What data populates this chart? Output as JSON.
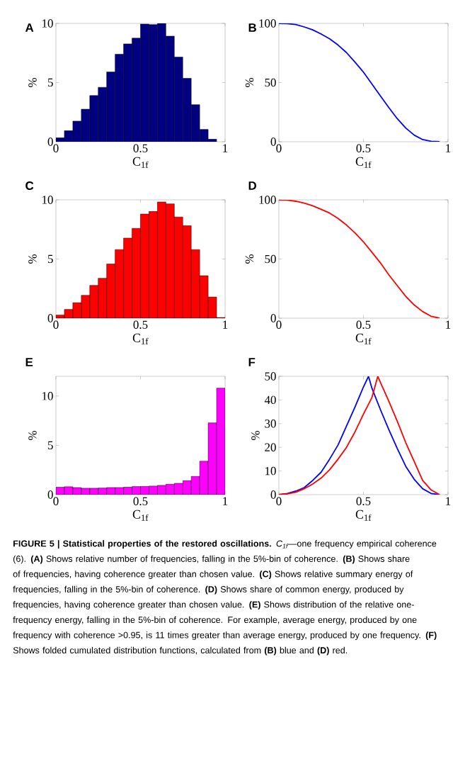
{
  "chart_data": [
    {
      "type": "histogram",
      "title": "A",
      "xlabel": "C$_{1f}$",
      "ylabel": "%",
      "color": "#000080",
      "bins": [
        0,
        0.05,
        0.1,
        0.15,
        0.2,
        0.25,
        0.3,
        0.35,
        0.4,
        0.45,
        0.5,
        0.55,
        0.6,
        0.65,
        0.7,
        0.75,
        0.8,
        0.85,
        0.9,
        0.95,
        1
      ],
      "values": [
        0.34,
        0.94,
        1.74,
        2.75,
        3.9,
        4.6,
        5.9,
        7.4,
        8.27,
        8.75,
        9.94,
        9.9,
        10.0,
        8.92,
        7.15,
        5.36,
        3.13,
        1.04,
        0.22,
        0
      ],
      "xlim": [
        0,
        1
      ],
      "xticks": [
        0,
        0.5,
        1
      ],
      "ylim": [
        0,
        10
      ],
      "yticks": [
        0,
        5,
        10
      ]
    },
    {
      "type": "line",
      "title": "B",
      "xlabel": "C$_{1f}$",
      "ylabel": "%",
      "color": "#0000ff",
      "x": [
        0,
        0.05,
        0.1,
        0.15,
        0.2,
        0.25,
        0.3,
        0.35,
        0.4,
        0.45,
        0.5,
        0.55,
        0.6,
        0.65,
        0.7,
        0.75,
        0.8,
        0.85,
        0.9,
        0.95
      ],
      "values": [
        100,
        99.8,
        99,
        97,
        94.5,
        91,
        87,
        81.7,
        75.3,
        67.3,
        58.8,
        48.8,
        38.8,
        28.9,
        19.5,
        11.6,
        5.6,
        1.8,
        0.4,
        0
      ],
      "xlim": [
        0,
        1
      ],
      "xticks": [
        0,
        0.5,
        1
      ],
      "ylim": [
        0,
        100
      ],
      "yticks": [
        0,
        50,
        100
      ]
    },
    {
      "type": "histogram",
      "title": "C",
      "xlabel": "C$_{1f}$",
      "ylabel": "%",
      "color": "#ff0000",
      "bins": [
        0,
        0.05,
        0.1,
        0.15,
        0.2,
        0.25,
        0.3,
        0.35,
        0.4,
        0.45,
        0.5,
        0.55,
        0.6,
        0.65,
        0.7,
        0.75,
        0.8,
        0.85,
        0.9,
        0.95,
        1
      ],
      "values": [
        0.26,
        0.74,
        1.31,
        1.93,
        2.77,
        3.37,
        4.58,
        5.8,
        6.77,
        7.59,
        8.8,
        9.02,
        9.82,
        9.66,
        8.55,
        7.81,
        5.8,
        3.59,
        1.79,
        0.06
      ],
      "xlim": [
        0,
        1
      ],
      "xticks": [
        0,
        0.5,
        1
      ],
      "ylim": [
        0,
        10
      ],
      "yticks": [
        0,
        5,
        10
      ]
    },
    {
      "type": "line",
      "title": "D",
      "xlabel": "C$_{1f}$",
      "ylabel": "%",
      "color": "#ff0000",
      "x": [
        0,
        0.05,
        0.1,
        0.15,
        0.2,
        0.25,
        0.3,
        0.35,
        0.4,
        0.45,
        0.5,
        0.55,
        0.6,
        0.65,
        0.7,
        0.75,
        0.8,
        0.85,
        0.9,
        0.95
      ],
      "values": [
        100,
        99.8,
        98.8,
        97.2,
        95,
        92,
        88.8,
        84.3,
        78.7,
        72.1,
        64.5,
        55.8,
        46.8,
        36.7,
        27.5,
        18.5,
        11.2,
        5.6,
        1.6,
        0
      ],
      "xlim": [
        0,
        1
      ],
      "xticks": [
        0,
        0.5,
        1
      ],
      "ylim": [
        0,
        100
      ],
      "yticks": [
        0,
        50,
        100
      ]
    },
    {
      "type": "histogram",
      "title": "E",
      "xlabel": "C$_{1f}$",
      "ylabel": "%",
      "color": "#ff00ff",
      "bins": [
        0,
        0.05,
        0.1,
        0.15,
        0.2,
        0.25,
        0.3,
        0.35,
        0.4,
        0.45,
        0.5,
        0.55,
        0.6,
        0.65,
        0.7,
        0.75,
        0.8,
        0.85,
        0.9,
        0.95,
        1
      ],
      "values": [
        0.75,
        0.8,
        0.72,
        0.65,
        0.65,
        0.67,
        0.72,
        0.72,
        0.77,
        0.82,
        0.84,
        0.87,
        0.94,
        1.06,
        1.15,
        1.42,
        1.85,
        3.39,
        7.28,
        10.8
      ],
      "xlim": [
        0,
        1
      ],
      "xticks": [
        0,
        0.5,
        1
      ],
      "ylim": [
        0,
        12
      ],
      "yticks": [
        0,
        5,
        10
      ]
    },
    {
      "type": "line",
      "title": "F",
      "xlabel": "C$_{1f}$",
      "ylabel": "%",
      "series": [
        {
          "color": "#0000ff",
          "x": [
            0,
            0.05,
            0.1,
            0.15,
            0.2,
            0.25,
            0.3,
            0.35,
            0.4,
            0.45,
            0.5,
            0.53,
            0.55,
            0.6,
            0.65,
            0.7,
            0.75,
            0.8,
            0.85,
            0.9,
            0.95
          ],
          "values": [
            0,
            0.5,
            1.5,
            3,
            6,
            9.5,
            15,
            21,
            29,
            37,
            45.5,
            50,
            45,
            36,
            27.5,
            19.5,
            12,
            6.5,
            2.5,
            0.5,
            0
          ]
        },
        {
          "color": "#ff0000",
          "x": [
            0,
            0.05,
            0.1,
            0.15,
            0.2,
            0.25,
            0.3,
            0.35,
            0.4,
            0.45,
            0.5,
            0.55,
            0.585,
            0.6,
            0.65,
            0.7,
            0.75,
            0.8,
            0.85,
            0.9,
            0.95
          ],
          "values": [
            0,
            0.3,
            1,
            2.5,
            4.5,
            7,
            10.5,
            15,
            20,
            26.5,
            34,
            41,
            50,
            47.5,
            39.5,
            31,
            22,
            14,
            6,
            2,
            0
          ]
        }
      ],
      "xlim": [
        0,
        1
      ],
      "xticks": [
        0,
        0.5,
        1
      ],
      "ylim": [
        0,
        50
      ],
      "yticks": [
        0,
        10,
        20,
        30,
        40,
        50
      ],
      "annotations": [
        "**FIGURE 5 | Statistical properties of the restored oscillations.** *C$_{1f}$*—one frequency empirical coherence (6). **(A)** Shows relative number of frequencies, falling in the 5%-bin of coherence. **(B)** Shows share of frequencies, having coherence greater than chosen value. **(C)** Shows relative summary energy of frequencies, falling in the 5%-bin of coherence. **(D)** Shows share of common energy, produced by frequencies, having coherence greater than chosen value. **(E)** Shows distribution of the relative one-frequency energy, falling in the 5%-bin of coherence. For example, average energy, produced by one frequency with coherence >0.95, is 11 times greater than average energy, produced by one frequency. **(F)** Shows folded cumulated distribution functions, calculated from **(B)** blue and **(D)** red."
      ]
    }
  ]
}
